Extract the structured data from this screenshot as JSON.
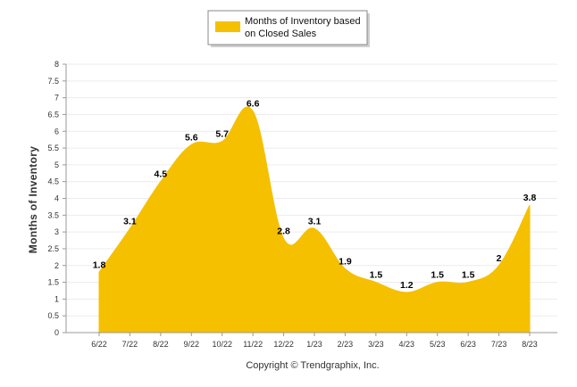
{
  "chart_data": {
    "type": "area",
    "categories": [
      "6/22",
      "7/22",
      "8/22",
      "9/22",
      "10/22",
      "11/22",
      "12/22",
      "1/23",
      "2/23",
      "3/23",
      "4/23",
      "5/23",
      "6/23",
      "7/23",
      "8/23"
    ],
    "series": [
      {
        "name": "Months of Inventory based on Closed Sales",
        "values": [
          1.8,
          3.1,
          4.5,
          5.6,
          5.7,
          6.6,
          2.8,
          3.1,
          1.9,
          1.5,
          1.2,
          1.5,
          1.5,
          2,
          3.8
        ],
        "labels": [
          "1.8",
          "3.1",
          "4.5",
          "5.6",
          "5.7",
          "6.6",
          "2.8",
          "3.1",
          "1.9",
          "1.5",
          "1.2",
          "1.5",
          "1.5",
          "2",
          "3.8"
        ],
        "color": "#F5C000"
      }
    ],
    "legend": {
      "line1": "Months of Inventory based",
      "line2": "on Closed Sales",
      "position": "top-center"
    },
    "ylabel": "Months of Inventory",
    "ylim": [
      0,
      8
    ],
    "yticks": [
      "0",
      "0.5",
      "1",
      "1.5",
      "2",
      "2.5",
      "3",
      "3.5",
      "4",
      "4.5",
      "5",
      "5.5",
      "6",
      "6.5",
      "7",
      "7.5",
      "8"
    ],
    "grid": true,
    "footer": "Copyright © Trendgraphix, Inc."
  }
}
